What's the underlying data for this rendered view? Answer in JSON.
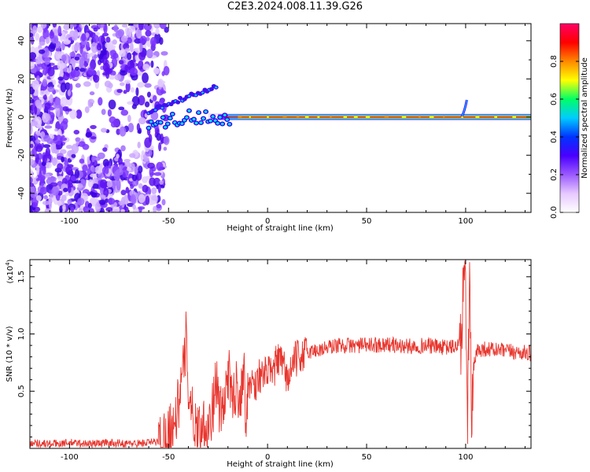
{
  "title": "C2E3.2024.008.11.39.G26",
  "chart_data": [
    {
      "type": "heatmap",
      "title": "C2E3.2024.008.11.39.G26",
      "xlabel": "Height of straight line (km)",
      "ylabel": "Frequency (Hz)",
      "xlim": [
        -120,
        133
      ],
      "ylim": [
        -50,
        49
      ],
      "xticks": [
        -100,
        -50,
        0,
        50,
        100
      ],
      "xtick_labels": [
        "-100",
        "-50",
        "0",
        "50",
        "100"
      ],
      "yticks": [
        -40,
        -20,
        0,
        20,
        40
      ],
      "ytick_labels": [
        "-40",
        "-20",
        "0",
        "20",
        "40"
      ],
      "colorbar": {
        "label": "Normalized spectral amplitude",
        "range": [
          0,
          1
        ],
        "ticks": [
          0.0,
          0.2,
          0.4,
          0.6,
          0.8
        ],
        "tick_labels": [
          "0.0",
          "0.2",
          "0.4",
          "0.6",
          "0.8"
        ],
        "colors": [
          "#ffffff",
          "#e6c8ff",
          "#9b59ff",
          "#4a00ff",
          "#0033ff",
          "#00ccff",
          "#00ff66",
          "#ffff00",
          "#ff8800",
          "#ff0000",
          "#ff0066"
        ]
      },
      "features": {
        "noise_region_km": [
          -120,
          -55
        ],
        "carrier_line_hz": 0,
        "carrier_start_km": -60,
        "diverging_branch": {
          "from_km": -60,
          "to_km": -26,
          "from_hz": 3,
          "to_hz": 16
        },
        "spike_km": 100
      },
      "colors": {
        "carrier": "#ff0000",
        "noise": "#5a10f0"
      }
    },
    {
      "type": "line",
      "xlabel": "Height of straight line (km)",
      "ylabel": "SNR (10 * v/v)",
      "y_multiplier": "(x10",
      "y_multiplier_exp": "4",
      "y_multiplier_close": ")",
      "xlim": [
        -120,
        133
      ],
      "ylim": [
        0,
        1.65
      ],
      "xticks": [
        -100,
        -50,
        0,
        50,
        100
      ],
      "xtick_labels": [
        "-100",
        "-50",
        "0",
        "50",
        "100"
      ],
      "yticks": [
        0.5,
        1.0,
        1.5
      ],
      "ytick_labels": [
        "0.5",
        "1.0",
        "1.5"
      ],
      "series": [
        {
          "color": "#e8362e",
          "x": [
            -120,
            -110,
            -100,
            -90,
            -80,
            -70,
            -60,
            -55,
            -52,
            -50,
            -48,
            -46,
            -44,
            -42,
            -41,
            -40,
            -38,
            -36,
            -34,
            -32,
            -30,
            -28,
            -26,
            -24,
            -22,
            -20,
            -18,
            -16,
            -14,
            -12,
            -11,
            -10,
            -8,
            -6,
            -4,
            -2,
            0,
            2,
            5,
            8,
            10,
            14,
            18,
            22,
            26,
            30,
            35,
            40,
            50,
            60,
            70,
            80,
            90,
            95,
            98,
            99,
            100,
            101,
            102,
            103,
            104,
            106,
            110,
            120,
            133
          ],
          "y": [
            0.05,
            0.04,
            0.05,
            0.04,
            0.05,
            0.04,
            0.05,
            0.06,
            0.1,
            0.16,
            0.2,
            0.3,
            0.5,
            0.75,
            1.0,
            0.55,
            0.3,
            0.2,
            0.15,
            0.25,
            0.2,
            0.3,
            0.6,
            0.3,
            0.35,
            0.7,
            0.4,
            0.55,
            0.45,
            0.72,
            0.3,
            0.5,
            0.6,
            0.55,
            0.65,
            0.6,
            0.7,
            0.62,
            0.78,
            0.72,
            0.6,
            0.78,
            0.82,
            0.85,
            0.86,
            0.88,
            0.9,
            0.9,
            0.9,
            0.91,
            0.89,
            0.9,
            0.88,
            0.89,
            0.95,
            1.6,
            1.2,
            0.3,
            1.6,
            0.12,
            0.7,
            0.86,
            0.87,
            0.85,
            0.83
          ]
        }
      ]
    }
  ]
}
